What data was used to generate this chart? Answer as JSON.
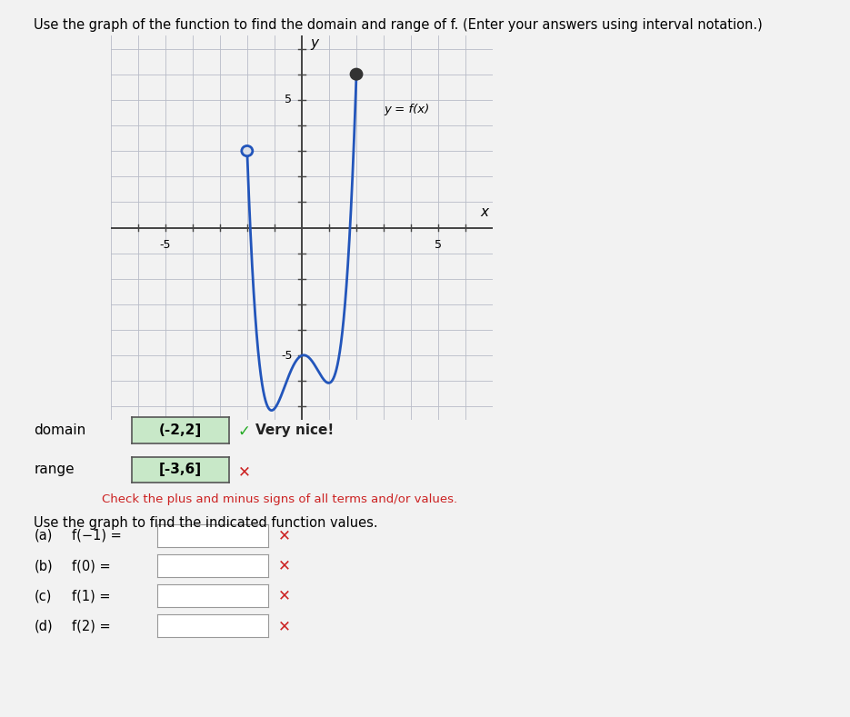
{
  "title_text": "Use the graph of the function to find the domain and range of f. (Enter your answers using interval notation.)",
  "graph_xlim": [
    -7,
    7
  ],
  "graph_ylim": [
    -7.5,
    7.5
  ],
  "x_axis_label": "x",
  "y_axis_label": "y",
  "function_label": "y = f(x)",
  "open_circle": [
    -2,
    3
  ],
  "closed_circle": [
    2,
    6
  ],
  "line_color": "#2255bb",
  "line_width": 2.0,
  "domain_display": "(-2,2]",
  "range_display": "[-3,6]",
  "range_error_msg": "Check the plus and minus signs of all terms and/or values.",
  "very_nice_text": "Very nice!",
  "function_values_text": "Use the graph to find the indicated function values.",
  "bg_color": "#f2f2f2",
  "plot_bg": "#dce0e8",
  "grid_color": "#b8bcc8",
  "key_x": [
    -2.0,
    -0.55,
    0.0,
    1.1,
    2.0
  ],
  "key_y": [
    3.0,
    -6.0,
    -5.0,
    -6.0,
    6.0
  ]
}
